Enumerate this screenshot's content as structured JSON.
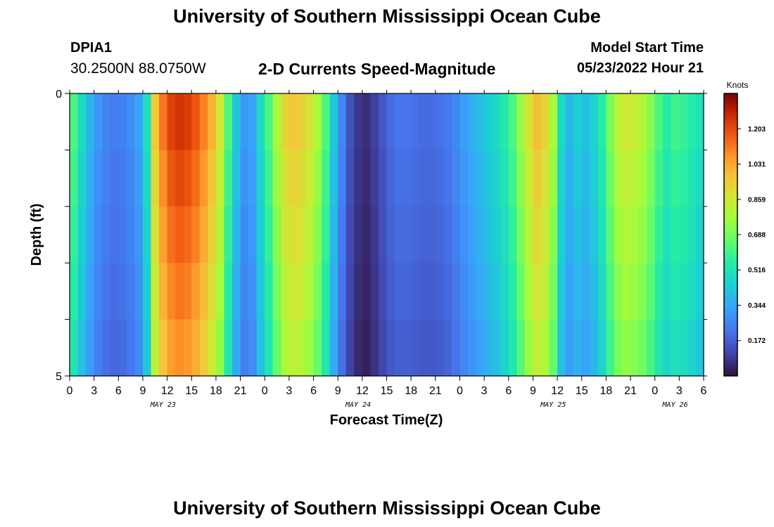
{
  "header": {
    "title": "University of Southern Mississippi Ocean Cube",
    "station_id": "DPIA1",
    "coordinates": "30.2500N  88.0750W",
    "plot_title": "2-D Currents Speed-Magnitude",
    "model_start_label": "Model Start Time",
    "model_start_value": "05/23/2022 Hour 21"
  },
  "footer": {
    "title": "University of Southern Mississippi Ocean Cube"
  },
  "chart_data": {
    "type": "heatmap",
    "title": "2-D Currents Speed-Magnitude",
    "xlabel": "Forecast Time(Z)",
    "ylabel": "Depth (ft)",
    "colorbar_label": "Knots",
    "colorbar_ticks": [
      "1.203",
      "1.031",
      "0.859",
      "0.688",
      "0.516",
      "0.344",
      "0.172"
    ],
    "colorbar_tick_values": [
      1.203,
      1.031,
      0.859,
      0.688,
      0.516,
      0.344,
      0.172
    ],
    "colorbar_range": [
      0.0,
      1.375
    ],
    "y_tick_labels": [
      "0",
      "5"
    ],
    "ylim": [
      0,
      5
    ],
    "xlim": [
      0,
      78
    ],
    "x_tick_labels": [
      "0",
      "3",
      "6",
      "9",
      "12",
      "15",
      "18",
      "21",
      "0",
      "3",
      "6",
      "9",
      "12",
      "15",
      "18",
      "21",
      "0",
      "3",
      "6",
      "9",
      "12",
      "15",
      "18",
      "21",
      "0",
      "3",
      "6"
    ],
    "day_labels": [
      {
        "label": "MAY 23",
        "hour": 11.5
      },
      {
        "label": "MAY 24",
        "hour": 35.5
      },
      {
        "label": "MAY 25",
        "hour": 59.5
      },
      {
        "label": "MAY 26",
        "hour": 74.5
      }
    ],
    "depth_levels": 5,
    "hours": [
      0,
      1,
      2,
      3,
      4,
      5,
      6,
      7,
      8,
      9,
      10,
      11,
      12,
      13,
      14,
      15,
      16,
      17,
      18,
      19,
      20,
      21,
      22,
      23,
      24,
      25,
      26,
      27,
      28,
      29,
      30,
      31,
      32,
      33,
      34,
      35,
      36,
      37,
      38,
      39,
      40,
      41,
      42,
      43,
      44,
      45,
      46,
      47,
      48,
      49,
      50,
      51,
      52,
      53,
      54,
      55,
      56,
      57,
      58,
      59,
      60,
      61,
      62,
      63,
      64,
      65,
      66,
      67,
      68,
      69,
      70,
      71,
      72,
      73,
      74,
      75,
      76,
      77
    ],
    "speed_surface": [
      0.62,
      0.48,
      0.38,
      0.3,
      0.26,
      0.24,
      0.25,
      0.28,
      0.33,
      0.5,
      0.95,
      1.12,
      1.22,
      1.25,
      1.23,
      1.18,
      1.1,
      1.0,
      0.86,
      0.62,
      0.42,
      0.3,
      0.34,
      0.48,
      0.62,
      0.78,
      0.92,
      0.96,
      0.94,
      0.88,
      0.78,
      0.62,
      0.42,
      0.26,
      0.14,
      0.08,
      0.06,
      0.1,
      0.15,
      0.2,
      0.22,
      0.22,
      0.21,
      0.2,
      0.2,
      0.21,
      0.23,
      0.27,
      0.32,
      0.36,
      0.4,
      0.44,
      0.48,
      0.54,
      0.62,
      0.75,
      0.88,
      0.98,
      0.92,
      0.78,
      0.48,
      0.38,
      0.44,
      0.4,
      0.46,
      0.55,
      0.7,
      0.82,
      0.86,
      0.84,
      0.8,
      0.72,
      0.62,
      0.55,
      0.6,
      0.58,
      0.55,
      0.5
    ]
  }
}
